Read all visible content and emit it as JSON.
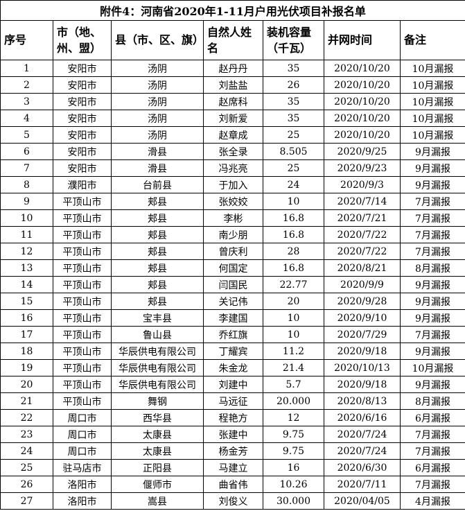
{
  "document": {
    "title": "附件4：河南省2020年1-11月户用光伏项目补报名单",
    "table": {
      "headers": [
        "序号",
        "市（地、州、盟）",
        "县（市、区、旗）",
        "自然人姓名",
        "装机容量（千瓦）",
        "并网时间",
        "备注"
      ],
      "rows": [
        [
          "1",
          "安阳市",
          "汤阴",
          "赵丹丹",
          "35",
          "2020/10/20",
          "10月漏报"
        ],
        [
          "2",
          "安阳市",
          "汤阴",
          "刘盐盐",
          "26",
          "2020/10/20",
          "10月漏报"
        ],
        [
          "3",
          "安阳市",
          "汤阴",
          "赵席科",
          "35",
          "2020/10/20",
          "10月漏报"
        ],
        [
          "4",
          "安阳市",
          "汤阴",
          "刘新爱",
          "35",
          "2020/10/20",
          "10月漏报"
        ],
        [
          "5",
          "安阳市",
          "汤阴",
          "赵章成",
          "25",
          "2020/10/20",
          "10月漏报"
        ],
        [
          "6",
          "安阳市",
          "滑县",
          "张全录",
          "8.505",
          "2020/9/25",
          "9月漏报"
        ],
        [
          "7",
          "安阳市",
          "滑县",
          "冯兆亮",
          "25",
          "2020/9/23",
          "9月漏报"
        ],
        [
          "8",
          "濮阳市",
          "台前县",
          "于加入",
          "24",
          "2020/9/3",
          "9月漏报"
        ],
        [
          "9",
          "平顶山市",
          "郏县",
          "张姣姣",
          "10",
          "2020/7/14",
          "7月漏报"
        ],
        [
          "10",
          "平顶山市",
          "郏县",
          "李彬",
          "16.8",
          "2020/7/21",
          "7月漏报"
        ],
        [
          "11",
          "平顶山市",
          "郏县",
          "南少朋",
          "16.8",
          "2020/7/22",
          "7月漏报"
        ],
        [
          "12",
          "平顶山市",
          "郏县",
          "曾庆利",
          "28",
          "2020/7/22",
          "7月漏报"
        ],
        [
          "13",
          "平顶山市",
          "郏县",
          "何国定",
          "16.8",
          "2020/8/21",
          "8月漏报"
        ],
        [
          "14",
          "平顶山市",
          "郏县",
          "闫国民",
          "22.77",
          "2020/9/9",
          "9月漏报"
        ],
        [
          "15",
          "平顶山市",
          "郏县",
          "关记伟",
          "20",
          "2020/9/28",
          "9月漏报"
        ],
        [
          "16",
          "平顶山市",
          "宝丰县",
          "李建国",
          "10",
          "2020/9/10",
          "9月漏报"
        ],
        [
          "17",
          "平顶山市",
          "鲁山县",
          "乔红旗",
          "10",
          "2020/7/29",
          "7月漏报"
        ],
        [
          "18",
          "平顶山市",
          "华辰供电有限公司",
          "丁耀宾",
          "11.2",
          "2020/9/18",
          "9月漏报"
        ],
        [
          "19",
          "平顶山市",
          "华辰供电有限公司",
          "朱金龙",
          "21.4",
          "2020/10/13",
          "10月漏报"
        ],
        [
          "20",
          "平顶山市",
          "华辰供电有限公司",
          "刘建中",
          "5.7",
          "2020/9/18",
          "9月漏报"
        ],
        [
          "21",
          "平顶山市",
          "舞钢",
          "马远征",
          "20.000",
          "2020/8/13",
          "8月漏报"
        ],
        [
          "22",
          "周口市",
          "西华县",
          "程艳方",
          "12",
          "2020/6/16",
          "6月漏报"
        ],
        [
          "23",
          "周口市",
          "太康县",
          "张建中",
          "9.75",
          "2020/7/24",
          "7月漏报"
        ],
        [
          "24",
          "周口市",
          "太康县",
          "杨金芳",
          "9.75",
          "2020/7/24",
          "7月漏报"
        ],
        [
          "25",
          "驻马店市",
          "正阳县",
          "马建立",
          "16",
          "2020/6/30",
          "6月漏报"
        ],
        [
          "26",
          "洛阳市",
          "偃师市",
          "曲省伟",
          "10.26",
          "2020/7/11",
          "7月漏报"
        ],
        [
          "27",
          "洛阳市",
          "嵩县",
          "刘俊义",
          "30.000",
          "2020/04/05",
          "4月漏报"
        ]
      ]
    }
  }
}
